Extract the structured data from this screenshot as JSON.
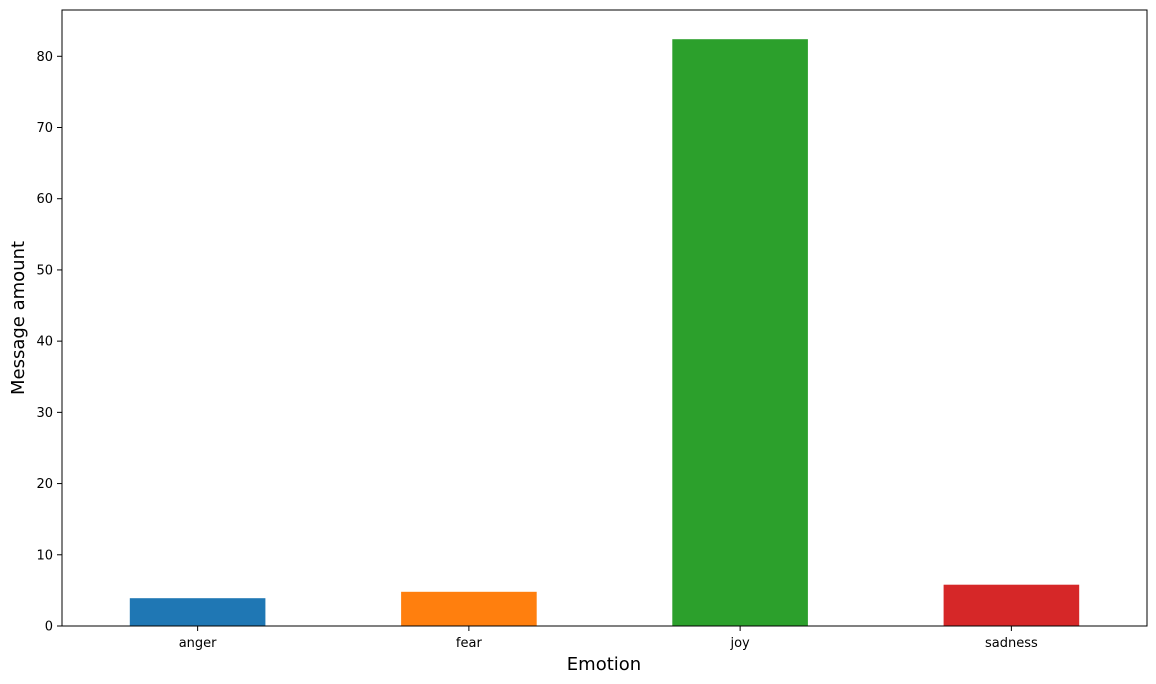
{
  "chart_data": {
    "type": "bar",
    "title": "",
    "xlabel": "Emotion",
    "ylabel": "Message amount",
    "categories": [
      "anger",
      "fear",
      "joy",
      "sadness"
    ],
    "values": [
      3.9,
      4.8,
      82.4,
      5.8
    ],
    "colors": [
      "#1f77b4",
      "#ff7f0e",
      "#2ca02c",
      "#d62728"
    ],
    "ylim": [
      0,
      86.5
    ],
    "yticks": [
      "0",
      "10",
      "20",
      "30",
      "40",
      "50",
      "60",
      "70",
      "80"
    ],
    "grid": false,
    "legend": "none"
  }
}
